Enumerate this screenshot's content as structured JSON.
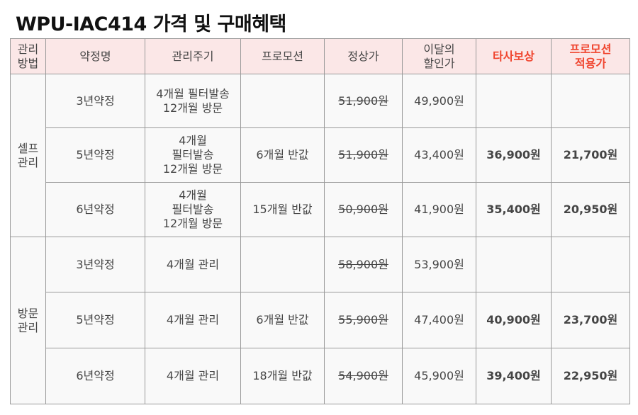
{
  "title": "WPU-IAC414 가격 및 구매혜택",
  "headers": {
    "method": "관리\n방법",
    "plan": "약정명",
    "cycle": "관리주기",
    "promo": "프로모션",
    "regular": "정상가",
    "discount": "이달의\n할인가",
    "compensation": "타사보상",
    "promo_price": "프로모션\n적용가"
  },
  "groups": [
    {
      "method": "셀프\n관리",
      "rows": [
        {
          "plan": "3년약정",
          "cycle": "4개월 필터발송\n12개월 방문",
          "promo": "",
          "regular": "51,900원",
          "discount": "49,900원",
          "compensation": "",
          "promo_price": ""
        },
        {
          "plan": "5년약정",
          "cycle": "4개월\n필터발송\n12개월 방문",
          "promo": "6개월 반값",
          "regular": "51,900원",
          "discount": "43,400원",
          "compensation": "36,900원",
          "promo_price": "21,700원"
        },
        {
          "plan": "6년약정",
          "cycle": "4개월\n필터발송\n12개월 방문",
          "promo": "15개월 반값",
          "regular": "50,900원",
          "discount": "41,900원",
          "compensation": "35,400원",
          "promo_price": "20,950원"
        }
      ]
    },
    {
      "method": "방문\n관리",
      "rows": [
        {
          "plan": "3년약정",
          "cycle": "4개월 관리",
          "promo": "",
          "regular": "58,900원",
          "discount": "53,900원",
          "compensation": "",
          "promo_price": ""
        },
        {
          "plan": "5년약정",
          "cycle": "4개월 관리",
          "promo": "6개월 반값",
          "regular": "55,900원",
          "discount": "47,400원",
          "compensation": "40,900원",
          "promo_price": "23,700원"
        },
        {
          "plan": "6년약정",
          "cycle": "4개월 관리",
          "promo": "18개월 반값",
          "regular": "54,900원",
          "discount": "45,900원",
          "compensation": "39,400원",
          "promo_price": "22,950원"
        }
      ]
    }
  ]
}
